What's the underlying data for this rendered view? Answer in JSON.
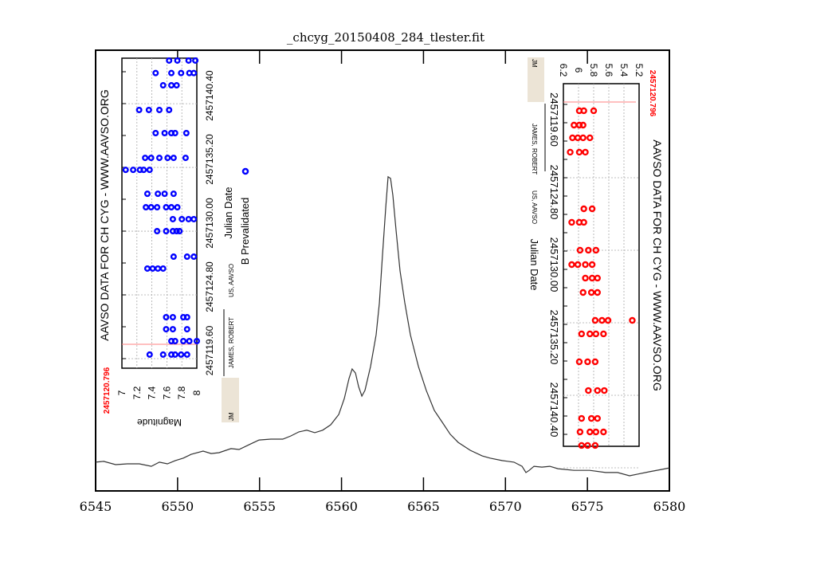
{
  "chart_data": [
    {
      "type": "line",
      "title": "_chcyg_20150408_284_tlester.fit",
      "xlabel": "",
      "ylabel": "",
      "xlim": [
        6545,
        6580
      ],
      "ylim": [
        0,
        16.26
      ],
      "xticks": [
        "6545",
        "6550",
        "6555",
        "6560",
        "6565",
        "6570",
        "6575",
        "6580"
      ],
      "grid": false,
      "colors": {
        "line": "#333333",
        "axis": "#000000"
      },
      "x": [
        6545.0,
        6545.49,
        6546.22,
        6546.94,
        6547.67,
        6548.4,
        6548.89,
        6549.38,
        6549.86,
        6550.35,
        6550.83,
        6551.56,
        6552.05,
        6552.53,
        6553.26,
        6553.75,
        6554.48,
        6554.97,
        6555.69,
        6556.42,
        6556.91,
        6557.4,
        6557.88,
        6558.37,
        6558.85,
        6559.34,
        6559.83,
        6560.17,
        6560.46,
        6560.65,
        6560.85,
        6561.04,
        6561.24,
        6561.43,
        6561.77,
        6562.11,
        6562.31,
        6562.5,
        6562.7,
        6562.84,
        6562.99,
        6563.13,
        6563.33,
        6563.57,
        6563.86,
        6564.2,
        6564.69,
        6565.17,
        6565.66,
        6566.15,
        6566.63,
        6567.12,
        6567.85,
        6568.58,
        6569.06,
        6569.79,
        6570.52,
        6571.01,
        6571.25,
        6571.45,
        6571.74,
        6572.22,
        6572.71,
        6573.2,
        6574.17,
        6575.14,
        6576.11,
        6576.84,
        6577.57,
        6578.06,
        6578.79,
        6579.51,
        6580.0
      ],
      "y": [
        1.06,
        1.09,
        0.97,
        1.0,
        1.0,
        0.91,
        1.06,
        1.0,
        1.12,
        1.21,
        1.35,
        1.47,
        1.38,
        1.41,
        1.56,
        1.53,
        1.74,
        1.88,
        1.91,
        1.91,
        2.03,
        2.18,
        2.24,
        2.15,
        2.24,
        2.44,
        2.82,
        3.41,
        4.15,
        4.5,
        4.35,
        3.85,
        3.5,
        3.71,
        4.59,
        5.76,
        6.94,
        8.71,
        10.47,
        11.59,
        11.53,
        10.91,
        9.59,
        8.12,
        6.94,
        5.76,
        4.59,
        3.71,
        2.97,
        2.53,
        2.09,
        1.79,
        1.5,
        1.29,
        1.21,
        1.12,
        1.06,
        0.91,
        0.68,
        0.76,
        0.91,
        0.88,
        0.91,
        0.82,
        0.76,
        0.76,
        0.68,
        0.68,
        0.56,
        0.62,
        0.71,
        0.79,
        0.85
      ]
    },
    {
      "type": "scatter",
      "title": "AAVSO DATA FOR CH CYG - WWW.AAVSO.ORG",
      "xlabel": "Julian Date",
      "ylabel": "Magnitude",
      "xticks": [
        "2457119.60",
        "2457124.80",
        "2457130.00",
        "2457135.20",
        "2457140.40"
      ],
      "yticks": [
        "7",
        "7.2",
        "7.4",
        "7.6",
        "7.8",
        "8"
      ],
      "ylim": [
        7,
        8
      ],
      "xlim": [
        2457118.82,
        2457144.1
      ],
      "marker_line_label": "2457120.796",
      "marker_line_value": 2457120.796,
      "legend": [
        "B Prevalidated"
      ],
      "observer": {
        "code": "JM",
        "name": "JAMES, ROBERT",
        "org": "US, AAVSO"
      },
      "color": "#0000ff",
      "points": [
        [
          2457119.93,
          7.37
        ],
        [
          2457119.93,
          7.55
        ],
        [
          2457119.93,
          7.66
        ],
        [
          2457119.93,
          7.71
        ],
        [
          2457119.93,
          7.79
        ],
        [
          2457119.93,
          7.87
        ],
        [
          2457121.03,
          7.66
        ],
        [
          2457121.03,
          7.71
        ],
        [
          2457121.03,
          7.82
        ],
        [
          2457121.03,
          7.9
        ],
        [
          2457121.03,
          8.0
        ],
        [
          2457122.0,
          7.59
        ],
        [
          2457122.0,
          7.68
        ],
        [
          2457122.0,
          7.87
        ],
        [
          2457122.98,
          7.59
        ],
        [
          2457122.98,
          7.68
        ],
        [
          2457122.98,
          7.82
        ],
        [
          2457122.98,
          7.87
        ],
        [
          2457126.95,
          7.34
        ],
        [
          2457126.95,
          7.41
        ],
        [
          2457126.95,
          7.48
        ],
        [
          2457126.95,
          7.55
        ],
        [
          2457127.92,
          7.69
        ],
        [
          2457127.92,
          7.87
        ],
        [
          2457127.92,
          7.96
        ],
        [
          2457130.0,
          7.47
        ],
        [
          2457130.0,
          7.59
        ],
        [
          2457130.0,
          7.68
        ],
        [
          2457130.0,
          7.73
        ],
        [
          2457130.0,
          7.77
        ],
        [
          2457130.98,
          7.68
        ],
        [
          2457130.98,
          7.8
        ],
        [
          2457130.98,
          7.89
        ],
        [
          2457130.98,
          7.96
        ],
        [
          2457131.95,
          7.32
        ],
        [
          2457131.95,
          7.39
        ],
        [
          2457131.95,
          7.47
        ],
        [
          2457131.95,
          7.59
        ],
        [
          2457131.95,
          7.66
        ],
        [
          2457131.95,
          7.74
        ],
        [
          2457133.05,
          7.34
        ],
        [
          2457133.05,
          7.48
        ],
        [
          2457133.05,
          7.57
        ],
        [
          2457133.05,
          7.69
        ],
        [
          2457135.0,
          7.05
        ],
        [
          2457135.0,
          7.15
        ],
        [
          2457135.0,
          7.24
        ],
        [
          2457135.0,
          7.29
        ],
        [
          2457135.0,
          7.37
        ],
        [
          2457135.98,
          7.31
        ],
        [
          2457135.98,
          7.39
        ],
        [
          2457135.98,
          7.5
        ],
        [
          2457135.98,
          7.61
        ],
        [
          2457135.98,
          7.69
        ],
        [
          2457135.98,
          7.85
        ],
        [
          2457138.0,
          7.45
        ],
        [
          2457138.0,
          7.57
        ],
        [
          2457138.0,
          7.66
        ],
        [
          2457138.0,
          7.71
        ],
        [
          2457138.0,
          7.86
        ],
        [
          2457139.89,
          7.23
        ],
        [
          2457139.89,
          7.36
        ],
        [
          2457139.89,
          7.5
        ],
        [
          2457139.89,
          7.63
        ],
        [
          2457141.9,
          7.55
        ],
        [
          2457141.9,
          7.66
        ],
        [
          2457141.9,
          7.73
        ],
        [
          2457142.9,
          7.45
        ],
        [
          2457142.9,
          7.66
        ],
        [
          2457142.9,
          7.79
        ],
        [
          2457142.9,
          7.9
        ],
        [
          2457142.9,
          7.96
        ],
        [
          2457143.92,
          7.63
        ],
        [
          2457143.92,
          7.74
        ],
        [
          2457143.92,
          7.89
        ],
        [
          2457143.92,
          7.98
        ]
      ]
    },
    {
      "type": "scatter",
      "title": "AAVSO DATA FOR CH CYG - WWW.AAVSO.ORG",
      "xlabel": "Julian Date",
      "xticks": [
        "2457119.60",
        "2457124.80",
        "2457130.00",
        "2457135.20",
        "2457140.40"
      ],
      "yticks": [
        "6.2",
        "6",
        "5.8",
        "5.6",
        "5.4",
        "5.2"
      ],
      "ylim": [
        6.2,
        5.2
      ],
      "marker_line_label": "2457120.796",
      "marker_line_value": 2457120.796,
      "observer": {
        "code": "JM",
        "name": "JAMES, ROBERT",
        "org": "US, AAVSO"
      },
      "color": "#ff0000",
      "points": [
        [
          2457118.97,
          5.99
        ],
        [
          2457118.97,
          5.93
        ],
        [
          2457118.97,
          5.8
        ],
        [
          2457120.0,
          6.06
        ],
        [
          2457120.0,
          5.99
        ],
        [
          2457120.0,
          5.94
        ],
        [
          2457120.91,
          6.08
        ],
        [
          2457120.91,
          6.01
        ],
        [
          2457120.91,
          5.94
        ],
        [
          2457120.91,
          5.85
        ],
        [
          2457121.94,
          6.11
        ],
        [
          2457121.94,
          5.99
        ],
        [
          2457121.94,
          5.91
        ],
        [
          2457126.0,
          5.93
        ],
        [
          2457126.0,
          5.82
        ],
        [
          2457126.97,
          6.09
        ],
        [
          2457126.97,
          5.99
        ],
        [
          2457126.97,
          5.93
        ],
        [
          2457128.97,
          5.98
        ],
        [
          2457128.97,
          5.87
        ],
        [
          2457128.97,
          5.77
        ],
        [
          2457130.0,
          6.09
        ],
        [
          2457130.0,
          6.01
        ],
        [
          2457130.0,
          5.91
        ],
        [
          2457130.0,
          5.82
        ],
        [
          2457130.97,
          5.91
        ],
        [
          2457130.97,
          5.82
        ],
        [
          2457130.97,
          5.75
        ],
        [
          2457132.0,
          5.94
        ],
        [
          2457132.0,
          5.83
        ],
        [
          2457132.0,
          5.75
        ],
        [
          2457134.0,
          5.78
        ],
        [
          2457134.0,
          5.69
        ],
        [
          2457134.0,
          5.61
        ],
        [
          2457134.0,
          5.29
        ],
        [
          2457134.97,
          5.96
        ],
        [
          2457134.97,
          5.85
        ],
        [
          2457134.97,
          5.77
        ],
        [
          2457134.97,
          5.67
        ],
        [
          2457136.97,
          5.99
        ],
        [
          2457136.97,
          5.88
        ],
        [
          2457136.97,
          5.78
        ],
        [
          2457139.03,
          5.87
        ],
        [
          2457139.03,
          5.75
        ],
        [
          2457139.03,
          5.66
        ],
        [
          2457141.03,
          5.96
        ],
        [
          2457141.03,
          5.83
        ],
        [
          2457141.03,
          5.75
        ],
        [
          2457142.0,
          5.98
        ],
        [
          2457142.0,
          5.85
        ],
        [
          2457142.0,
          5.77
        ],
        [
          2457142.0,
          5.67
        ],
        [
          2457142.97,
          5.96
        ],
        [
          2457142.97,
          5.88
        ],
        [
          2457142.97,
          5.78
        ]
      ]
    }
  ]
}
